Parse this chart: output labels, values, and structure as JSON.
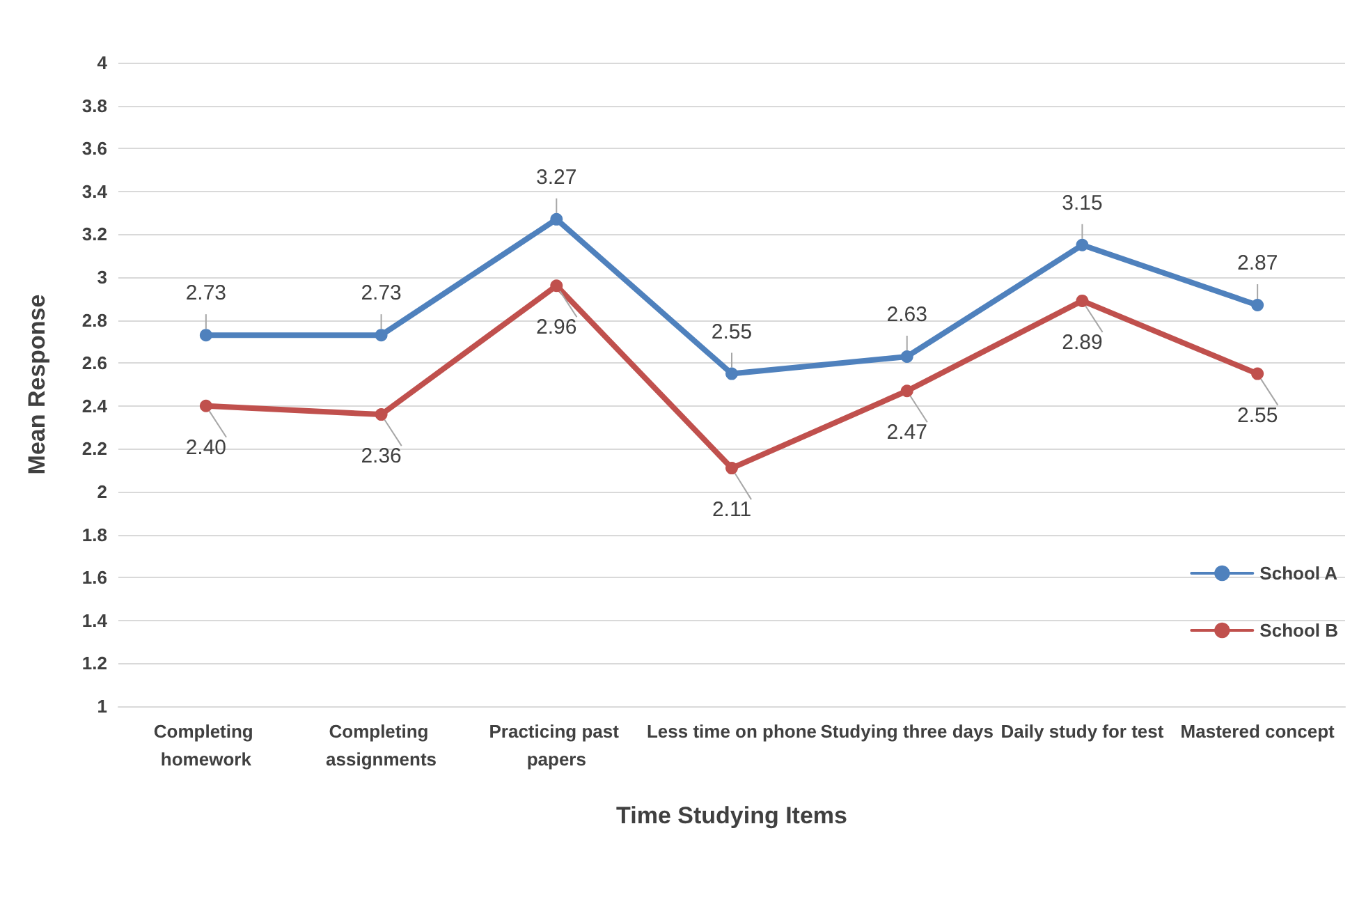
{
  "chart_data": {
    "type": "line",
    "xlabel": "Time Studying Items",
    "ylabel": "Mean Response",
    "categories": [
      "Completing homework",
      "Completing assignments",
      "Practicing past papers",
      "Less time on phone",
      "Studying three days",
      "Daily study for test",
      "Mastered concept"
    ],
    "series": [
      {
        "name": "School A",
        "color": "#4f81bd",
        "values": [
          2.73,
          2.73,
          3.27,
          2.55,
          2.63,
          3.15,
          2.87
        ],
        "value_labels": [
          "2.73",
          "2.73",
          "3.27",
          "2.55",
          "2.63",
          "3.15",
          "2.87"
        ]
      },
      {
        "name": "School B",
        "color": "#c0504d",
        "values": [
          2.4,
          2.36,
          2.96,
          2.11,
          2.47,
          2.89,
          2.55
        ],
        "value_labels": [
          "2.40",
          "2.36",
          "2.96",
          "2.11",
          "2.47",
          "2.89",
          "2.55"
        ]
      }
    ],
    "ylim": [
      1,
      4
    ],
    "yticks": [
      1,
      1.2,
      1.4,
      1.6,
      1.8,
      2,
      2.2,
      2.4,
      2.6,
      2.8,
      3,
      3.2,
      3.4,
      3.6,
      3.8,
      4
    ],
    "grid": "y",
    "legend": "right",
    "marker": "circle",
    "line_style": "solid"
  }
}
